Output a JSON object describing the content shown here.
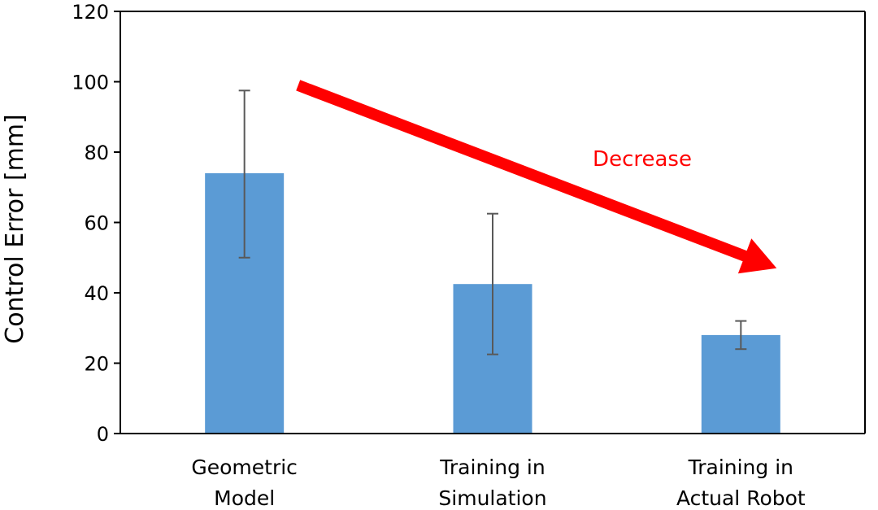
{
  "chart_data": {
    "type": "bar",
    "categories": [
      [
        "Geometric",
        "Model"
      ],
      [
        "Training in",
        "Simulation"
      ],
      [
        "Training in",
        "Actual Robot"
      ]
    ],
    "values": [
      74,
      42.5,
      28
    ],
    "error_bars": [
      {
        "low": 50,
        "high": 97.5
      },
      {
        "low": 22.5,
        "high": 62.5
      },
      {
        "low": 24,
        "high": 32
      }
    ],
    "title": "",
    "xlabel": "",
    "ylabel": "Control Error [mm]",
    "ylim": [
      0,
      120
    ],
    "yticks": [
      "0",
      "20",
      "40",
      "60",
      "80",
      "100",
      "120"
    ],
    "grid": false,
    "legend": "none",
    "bar_color": "#5b9bd5",
    "error_bar_color": "#595959",
    "annotation": {
      "text": "Decrease",
      "color": "#ff0000",
      "arrow": {
        "from": {
          "category": 0,
          "value": 99
        },
        "to": {
          "category": 2,
          "value": 47
        }
      }
    }
  }
}
